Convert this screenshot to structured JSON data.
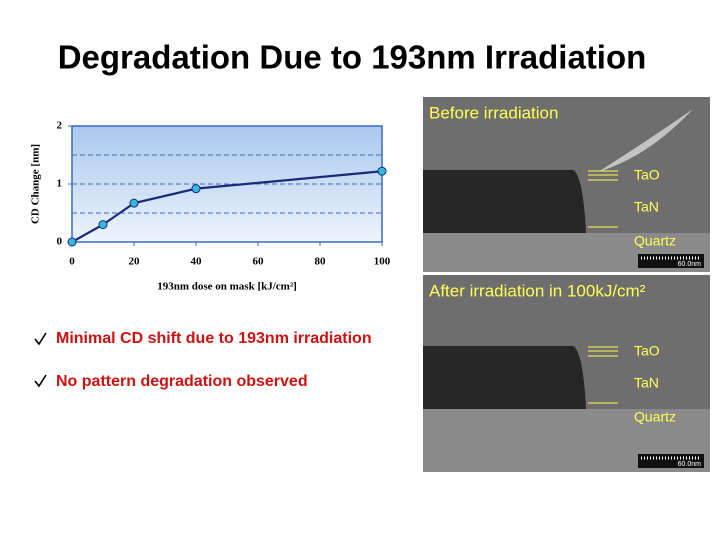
{
  "title": "Degradation Due to 193nm Irradiation",
  "chart_data": {
    "type": "line",
    "x_label": "193nm dose on mask [kJ/cm²]",
    "y_label": "CD Change [nm]",
    "x": [
      0,
      10,
      20,
      40,
      100
    ],
    "values": [
      0,
      0.3,
      0.67,
      0.92,
      1.22
    ],
    "color": "#1a2a7a",
    "marker_color": "#33bbdd",
    "xlim": [
      0,
      100
    ],
    "xticks": [
      0,
      20,
      40,
      60,
      80,
      100
    ],
    "ylim": [
      0,
      2
    ],
    "yticks": [
      0,
      1,
      2
    ],
    "ygrid": [
      0.5,
      1,
      1.5
    ]
  },
  "bullets": [
    "Minimal CD shift due to 193nm irradiation",
    "No pattern degradation observed"
  ],
  "images": [
    {
      "caption": "Before irradiation",
      "layers": [
        "TaO",
        "TaN",
        "Quartz"
      ],
      "scale": "60.0nm"
    },
    {
      "caption": "After irradiation in 100kJ/cm²",
      "layers": [
        "TaO",
        "TaN",
        "Quartz"
      ],
      "scale": "60.0nm"
    }
  ]
}
